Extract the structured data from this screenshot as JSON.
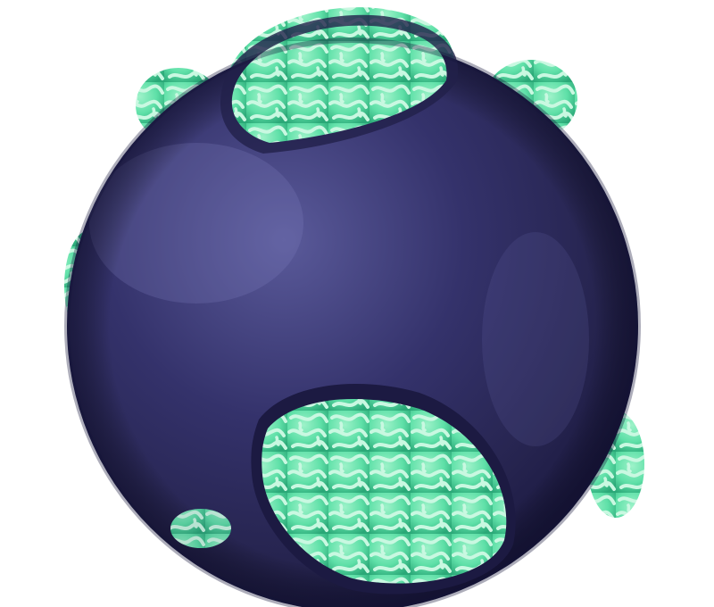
{
  "image": {
    "subject": "ball-sphere",
    "colors": {
      "background": "#ffffff",
      "sphere_base": "#2f2d63",
      "sphere_highlight": "#5a5a9a",
      "sphere_shadow": "#1e1c45",
      "pattern_base": "#5fe0a8",
      "pattern_light": "#b8f5d8",
      "pattern_dark": "#2aa877"
    },
    "pattern_panels": 8
  }
}
